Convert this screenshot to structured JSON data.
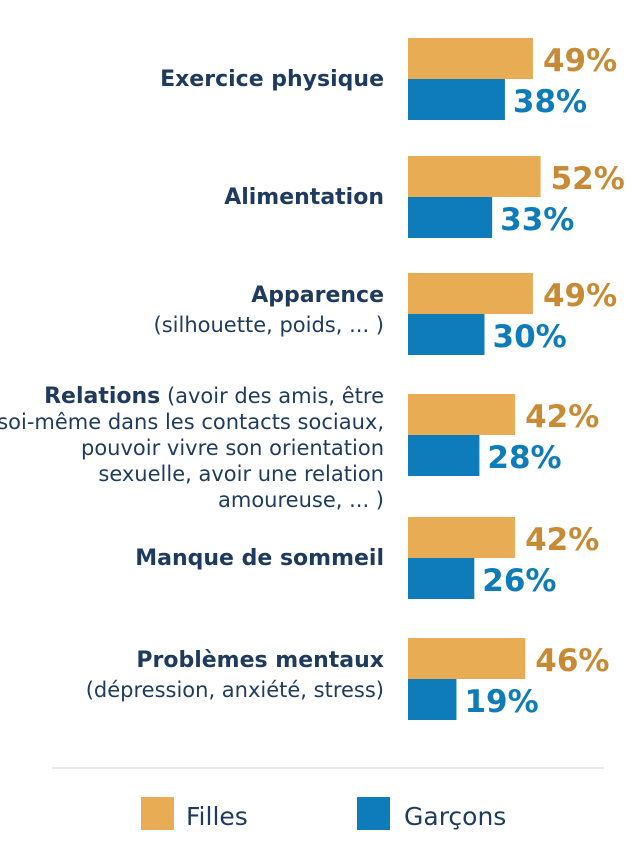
{
  "chart_data": {
    "type": "bar",
    "orientation": "horizontal",
    "categories": [
      {
        "label": "Exercice physique",
        "sub_lines": []
      },
      {
        "label": "Alimentation",
        "sub_lines": []
      },
      {
        "label": "Apparence",
        "sub_lines": [
          "(silhouette, poids, ... )"
        ]
      },
      {
        "label": "Relations",
        "first_line_suffix": " (avoir des amis, être",
        "sub_lines": [
          "soi-même dans les contacts sociaux,",
          "pouvoir vivre son orientation",
          "sexuelle, avoir une relation",
          "amoureuse, ... )"
        ]
      },
      {
        "label": "Manque de sommeil",
        "sub_lines": []
      },
      {
        "label": "Problèmes mentaux",
        "sub_lines": [
          "(dépression, anxiété, stress)"
        ]
      }
    ],
    "series": [
      {
        "name": "Filles",
        "color": "#e8ac55",
        "values": [
          49,
          52,
          49,
          42,
          42,
          46
        ],
        "value_labels": [
          "49%",
          "52%",
          "49%",
          "42%",
          "42%",
          "46%"
        ]
      },
      {
        "name": "Garçons",
        "color": "#0e7cba",
        "values": [
          38,
          33,
          30,
          28,
          26,
          19
        ],
        "value_labels": [
          "38%",
          "33%",
          "30%",
          "28%",
          "26%",
          "19%"
        ]
      }
    ],
    "legend_position": "bottom",
    "grid": false,
    "value_label_colors": {
      "Filles": "#c98a35",
      "Garçons": "#0e7cba"
    }
  }
}
